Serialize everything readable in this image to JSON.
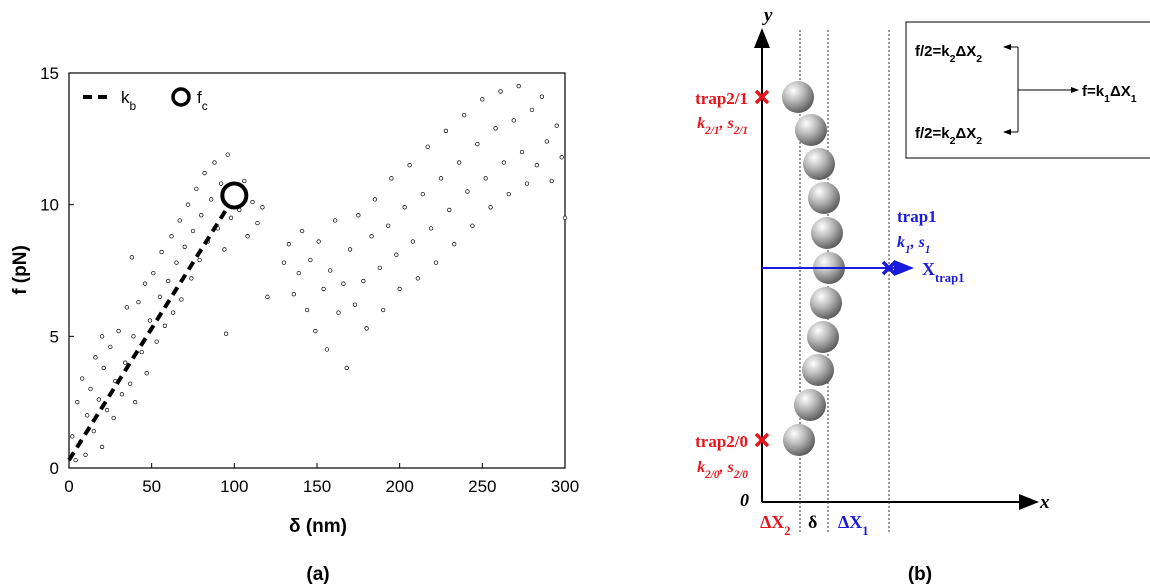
{
  "chart_data": {
    "type": "scatter",
    "xlabel": "δ (nm)",
    "ylabel": "f (pN)",
    "xlim": [
      0,
      300
    ],
    "ylim": [
      0,
      15
    ],
    "xticks": [
      0,
      50,
      100,
      150,
      200,
      250,
      300
    ],
    "yticks": [
      0,
      5,
      10,
      15
    ],
    "legend": "upper left",
    "series": [
      {
        "type": "scatter",
        "color": "#000000",
        "x": [
          2,
          4,
          5,
          7,
          8,
          10,
          11,
          13,
          15,
          16,
          18,
          20,
          21,
          23,
          25,
          27,
          28,
          30,
          32,
          34,
          35,
          37,
          39,
          40,
          42,
          44,
          46,
          47,
          49,
          51,
          53,
          55,
          56,
          58,
          60,
          62,
          63,
          65,
          67,
          68,
          70,
          72,
          74,
          75,
          77,
          79,
          80,
          82,
          84,
          86,
          88,
          90,
          92,
          94,
          96,
          98,
          103,
          106,
          108,
          111,
          114,
          117,
          95,
          120,
          38,
          20,
          130,
          133,
          136,
          139,
          141,
          144,
          146,
          149,
          151,
          154,
          156,
          158,
          161,
          163,
          166,
          168,
          170,
          173,
          175,
          178,
          180,
          183,
          185,
          188,
          190,
          193,
          195,
          198,
          200,
          203,
          206,
          208,
          211,
          214,
          217,
          219,
          222,
          225,
          228,
          230,
          233,
          236,
          239,
          241,
          244,
          247,
          250,
          252,
          255,
          258,
          261,
          263,
          266,
          269,
          272,
          274,
          277,
          280,
          283,
          286,
          289,
          292,
          295,
          298,
          300
        ],
        "values": [
          1.2,
          0.3,
          2.5,
          1.0,
          3.4,
          0.5,
          2.0,
          3.0,
          1.4,
          4.2,
          2.6,
          0.8,
          3.8,
          2.2,
          4.6,
          1.9,
          3.3,
          5.2,
          2.8,
          4.0,
          6.1,
          3.2,
          5.0,
          2.5,
          6.3,
          4.4,
          7.0,
          3.6,
          5.6,
          7.4,
          4.8,
          6.5,
          8.2,
          5.4,
          7.1,
          8.8,
          5.9,
          7.8,
          9.4,
          6.4,
          8.4,
          10.0,
          7.2,
          9.0,
          10.6,
          7.9,
          9.6,
          11.2,
          8.6,
          10.2,
          11.6,
          9.1,
          10.8,
          8.3,
          11.9,
          9.5,
          9.8,
          10.9,
          8.8,
          10.1,
          9.3,
          9.9,
          5.1,
          6.5,
          8.0,
          5.0,
          7.8,
          8.5,
          6.6,
          7.4,
          9.0,
          6.0,
          7.9,
          5.2,
          8.6,
          6.8,
          4.5,
          7.5,
          9.4,
          5.9,
          7.0,
          3.8,
          8.3,
          6.2,
          9.6,
          7.1,
          5.3,
          8.8,
          10.2,
          7.6,
          6.0,
          9.2,
          11.0,
          8.1,
          6.8,
          9.9,
          11.5,
          8.6,
          7.2,
          10.4,
          12.2,
          9.1,
          7.8,
          11.0,
          12.8,
          9.8,
          8.5,
          11.6,
          13.4,
          10.5,
          9.2,
          12.3,
          14.0,
          11.0,
          9.9,
          12.9,
          14.3,
          11.6,
          10.4,
          13.2,
          14.5,
          12.0,
          10.8,
          13.6,
          11.5,
          14.1,
          12.4,
          10.9,
          13.0,
          11.8,
          9.5
        ]
      },
      {
        "type": "line",
        "name": "k",
        "name_sub": "b",
        "style": "dashed",
        "color": "#000000",
        "x": [
          0,
          100
        ],
        "values": [
          0.3,
          10.3
        ]
      },
      {
        "type": "marker",
        "name": "f",
        "name_sub": "c",
        "color": "#000000",
        "x": [
          100
        ],
        "values": [
          10.35
        ]
      }
    ]
  },
  "captions": [
    "(a)",
    "(b)"
  ],
  "diagram": {
    "axis_y": "y",
    "axis_x": "x",
    "origin": "0",
    "trap21": {
      "label": "trap2/1",
      "params": [
        {
          "text": "k",
          "sub": "2/1"
        },
        {
          "text": ", s",
          "sub": "2/1"
        }
      ]
    },
    "trap20": {
      "label": "trap2/0",
      "params": [
        {
          "text": "k",
          "sub": "2/0"
        },
        {
          "text": ", s",
          "sub": "2/0"
        }
      ]
    },
    "trap1": {
      "label": "trap1",
      "params": [
        {
          "text": "k",
          "sub": "1"
        },
        {
          "text": ", s",
          "sub": "1"
        }
      ],
      "position": [
        {
          "text": "X",
          "sub": "trap1"
        }
      ]
    },
    "bottom": {
      "dx2": [
        {
          "text": "ΔX",
          "sub": "2"
        }
      ],
      "delta": [
        {
          "text": "δ"
        }
      ],
      "dx1": [
        {
          "text": "ΔX",
          "sub": "1"
        }
      ]
    },
    "box": {
      "top": [
        {
          "text": "f/2=k",
          "sub": "2"
        },
        {
          "text": "ΔX",
          "sub": "2"
        }
      ],
      "bottom": [
        {
          "text": "f/2=k",
          "sub": "2"
        },
        {
          "text": "ΔX",
          "sub": "2"
        }
      ],
      "total": [
        {
          "text": "f=k",
          "sub": "1"
        },
        {
          "text": "ΔX",
          "sub": "1"
        }
      ]
    }
  }
}
